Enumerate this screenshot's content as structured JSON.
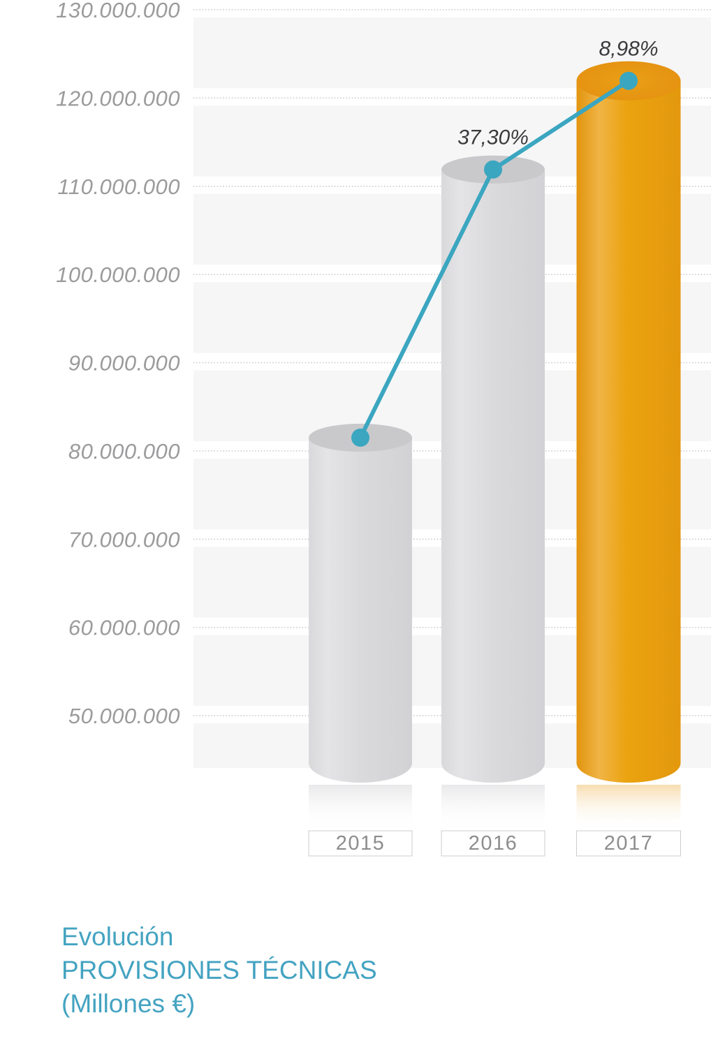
{
  "chart_data": {
    "type": "bar",
    "style": "3d-cylinder-column-with-trend-line",
    "title": "Evolución PROVISIONES TÉCNICAS (Millones €)",
    "title_lines": [
      "Evolución",
      "PROVISIONES TÉCNICAS",
      "(Millones €)"
    ],
    "xlabel": "",
    "ylabel": "",
    "categories": [
      "2015",
      "2016",
      "2017"
    ],
    "series": [
      {
        "name": "Provisiones técnicas (€)",
        "values": [
          81500000,
          111900000,
          121950000
        ]
      }
    ],
    "growth_labels": [
      "",
      "37,30%",
      "8,98%"
    ],
    "highlight_index": 2,
    "ylim": [
      50000000,
      130000000
    ],
    "y_tick_values": [
      130000000,
      120000000,
      110000000,
      100000000,
      90000000,
      80000000,
      70000000,
      60000000,
      50000000
    ],
    "y_tick_labels": [
      "130.000.000",
      "120.000.000",
      "110.000.000",
      "100.000.000",
      "90.000.000",
      "80.000.000",
      "70.000.000",
      "60.000.000",
      "50.000.000"
    ],
    "grid": "dotted-horizontal-with-alternating-bands",
    "legend": "none",
    "colors": {
      "bar_gray": "#dadadc",
      "bar_gray_top": "#c9c9cc",
      "bar_highlight": "#eaa30f",
      "bar_highlight_top": "#e28e0e",
      "trend_line": "#3ba6c0",
      "band": "#f6f6f7",
      "gridline": "#c9c9ca",
      "tick_text": "#9b9b9d",
      "year_text": "#8d8d8f",
      "pct_text": "#3a3a3c",
      "title_text": "#44a3c1"
    }
  }
}
